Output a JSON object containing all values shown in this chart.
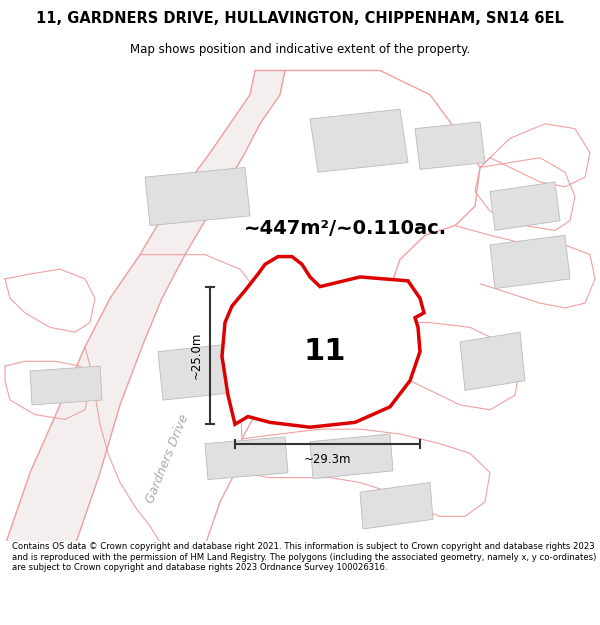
{
  "title": "11, GARDNERS DRIVE, HULLAVINGTON, CHIPPENHAM, SN14 6EL",
  "subtitle": "Map shows position and indicative extent of the property.",
  "area_label": "~447m²/~0.110ac.",
  "plot_number": "11",
  "dim_vertical": "~25.0m",
  "dim_horizontal": "~29.3m",
  "street_label": "Gardners Drive",
  "footer": "Contains OS data © Crown copyright and database right 2021. This information is subject to Crown copyright and database rights 2023 and is reproduced with the permission of HM Land Registry. The polygons (including the associated geometry, namely x, y co-ordinates) are subject to Crown copyright and database rights 2023 Ordnance Survey 100026316.",
  "bg_color": "#ffffff",
  "map_bg": "#ffffff",
  "plot_fill": "#ffffff",
  "plot_edge_color": "#dd0000",
  "building_fill": "#e0e0e0",
  "building_edge": "#bbbbbb",
  "road_fill": "#f5f0f0",
  "road_line_color": "#f0a0a0",
  "road_center_color": "#cccccc",
  "dim_line_color": "#333333",
  "title_color": "#000000",
  "footer_color": "#000000",
  "street_label_color": "#aaaaaa",
  "header_bg": "#ffffff",
  "footer_bg": "#ffffff"
}
